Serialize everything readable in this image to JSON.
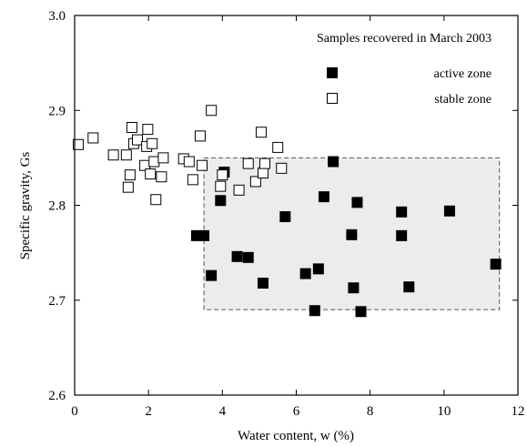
{
  "chart_data": {
    "type": "scatter",
    "xlabel": "Water content, w (%)",
    "ylabel": "Specific gravity, Gs",
    "xlim": [
      0,
      12
    ],
    "ylim": [
      2.6,
      3.0
    ],
    "xticks": [
      0,
      2,
      4,
      6,
      8,
      10,
      12
    ],
    "yticks": [
      2.6,
      2.7,
      2.8,
      2.9,
      3.0
    ],
    "xtick_labels": [
      "0",
      "2",
      "4",
      "6",
      "8",
      "10",
      "12"
    ],
    "ytick_labels": [
      "2.6",
      "2.7",
      "2.8",
      "2.9",
      "3.0"
    ],
    "grid": false,
    "annotation": "Samples recovered in March 2003",
    "legend": {
      "position": "top-right"
    },
    "highlight_region": {
      "x": [
        3.5,
        11.5
      ],
      "y": [
        2.69,
        2.85
      ],
      "fill": "#ececec",
      "stroke": "#555555"
    },
    "series": [
      {
        "name": "active zone",
        "marker": "filled-square",
        "color": "#000000",
        "points": [
          [
            3.3,
            2.768
          ],
          [
            3.5,
            2.768
          ],
          [
            3.7,
            2.726
          ],
          [
            3.95,
            2.805
          ],
          [
            4.05,
            2.835
          ],
          [
            4.4,
            2.746
          ],
          [
            4.7,
            2.745
          ],
          [
            5.1,
            2.718
          ],
          [
            5.7,
            2.788
          ],
          [
            6.25,
            2.728
          ],
          [
            6.5,
            2.689
          ],
          [
            6.6,
            2.733
          ],
          [
            6.75,
            2.809
          ],
          [
            7.0,
            2.846
          ],
          [
            7.5,
            2.769
          ],
          [
            7.55,
            2.713
          ],
          [
            7.65,
            2.803
          ],
          [
            7.75,
            2.688
          ],
          [
            8.85,
            2.793
          ],
          [
            8.85,
            2.768
          ],
          [
            9.05,
            2.714
          ],
          [
            10.15,
            2.794
          ],
          [
            11.4,
            2.738
          ]
        ]
      },
      {
        "name": "stable zone",
        "marker": "open-square",
        "color": "#000000",
        "points": [
          [
            0.1,
            2.864
          ],
          [
            0.5,
            2.871
          ],
          [
            1.05,
            2.853
          ],
          [
            1.4,
            2.853
          ],
          [
            1.45,
            2.819
          ],
          [
            1.5,
            2.832
          ],
          [
            1.55,
            2.882
          ],
          [
            1.6,
            2.865
          ],
          [
            1.7,
            2.869
          ],
          [
            1.9,
            2.842
          ],
          [
            1.95,
            2.862
          ],
          [
            1.98,
            2.88
          ],
          [
            2.05,
            2.833
          ],
          [
            2.1,
            2.865
          ],
          [
            2.15,
            2.846
          ],
          [
            2.2,
            2.806
          ],
          [
            2.35,
            2.83
          ],
          [
            2.4,
            2.85
          ],
          [
            2.95,
            2.849
          ],
          [
            3.1,
            2.846
          ],
          [
            3.2,
            2.827
          ],
          [
            3.4,
            2.873
          ],
          [
            3.45,
            2.842
          ],
          [
            3.7,
            2.9
          ],
          [
            3.95,
            2.82
          ],
          [
            4.0,
            2.832
          ],
          [
            4.45,
            2.816
          ],
          [
            4.7,
            2.844
          ],
          [
            4.9,
            2.825
          ],
          [
            5.05,
            2.877
          ],
          [
            5.1,
            2.834
          ],
          [
            5.15,
            2.844
          ],
          [
            5.5,
            2.861
          ],
          [
            5.6,
            2.839
          ]
        ]
      }
    ]
  }
}
